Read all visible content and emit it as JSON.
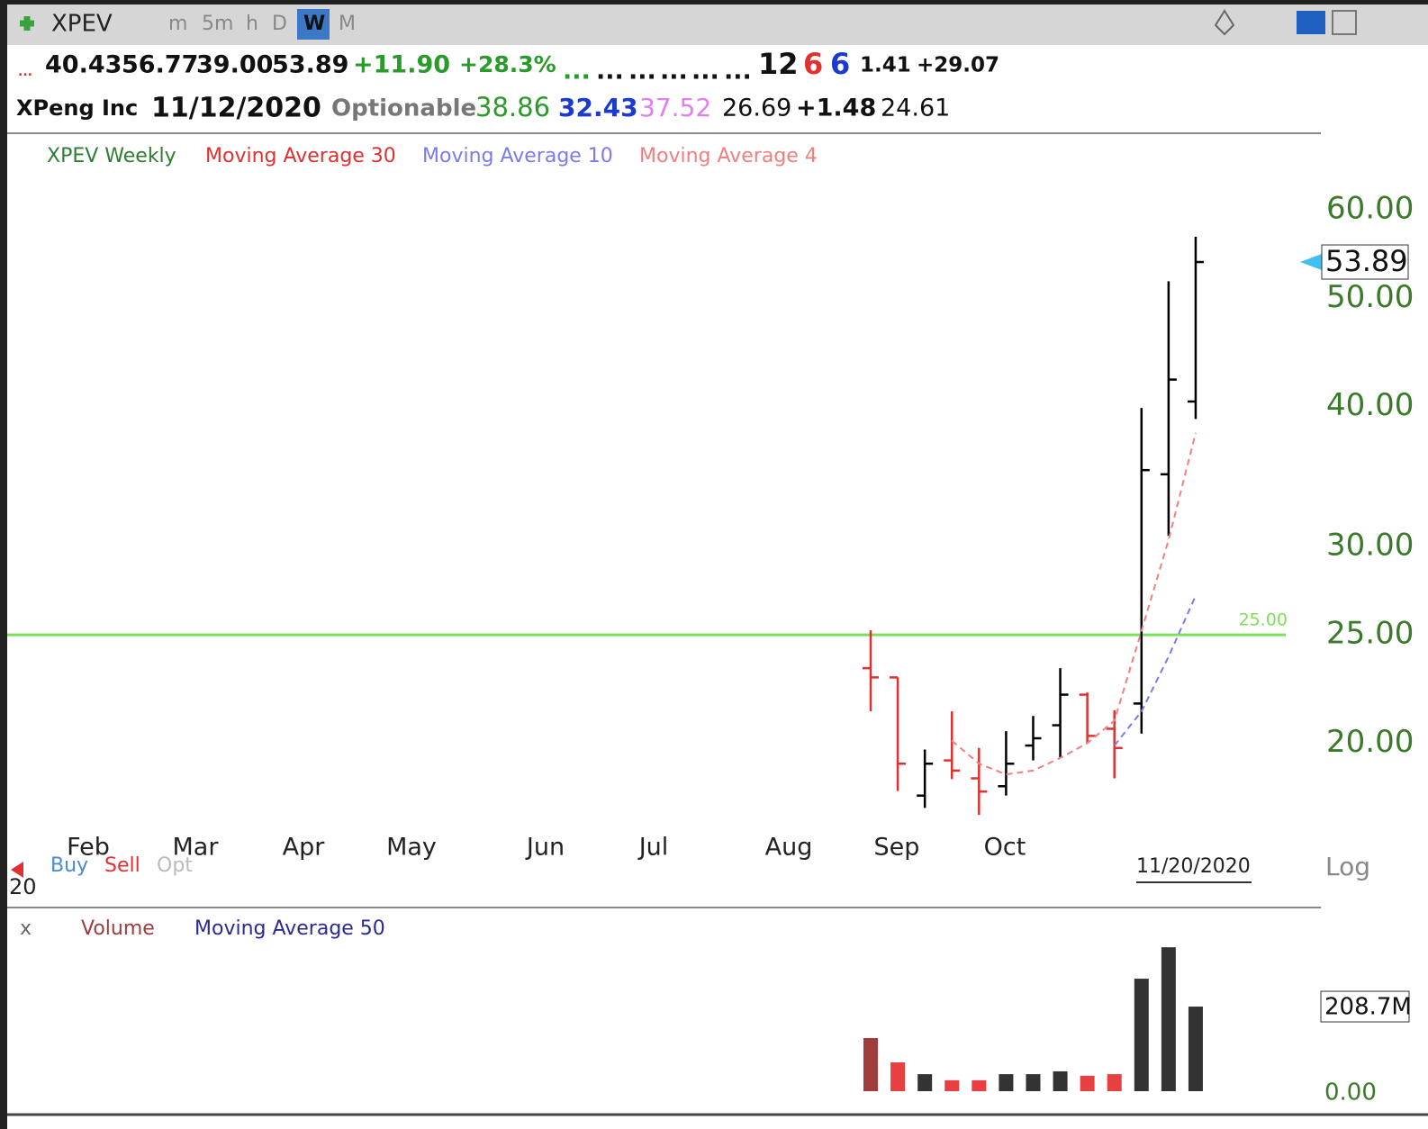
{
  "toolbar": {
    "symbol": "XPEV",
    "intervals": [
      "m",
      "5m",
      "h",
      "D",
      "W",
      "M"
    ]
  },
  "quote": {
    "line1": [
      "...",
      "40.43",
      "56.77",
      "39.00",
      "53.89",
      "+11.90",
      "+28.3%",
      "...",
      "...",
      "...",
      "...",
      "...",
      "...",
      "12",
      "6",
      "6",
      "1.41",
      "+29.07"
    ],
    "line2": [
      "XPeng Inc",
      "11/12/2020",
      "Optionable",
      "38.86",
      "32.43",
      "37.52",
      "26.69",
      "+1.48",
      "24.61"
    ]
  },
  "chart_data": [
    {
      "type": "ohlc",
      "legend": [
        "XPEV Weekly",
        "Moving Average 30"
      ],
      "open": [
        23.34,
        22.9,
        17.95,
        19.3,
        18.6,
        18.3,
        19.9,
        20.75,
        22.1,
        20.6,
        21.7,
        34.8,
        40.43
      ],
      "high": [
        25.23,
        22.9,
        19.74,
        21.35,
        19.8,
        20.5,
        21.15,
        23.34,
        22.2,
        21.4,
        39.9,
        51.8,
        56.77
      ],
      "low": [
        21.35,
        18.12,
        17.5,
        18.57,
        17.25,
        17.95,
        19.3,
        19.4,
        20.0,
        18.6,
        20.4,
        30.66,
        39.0
      ],
      "close": [
        22.9,
        19.17,
        19.17,
        18.9,
        18.1,
        19.17,
        20.2,
        22.1,
        20.3,
        19.8,
        35.1,
        42.3,
        53.89
      ],
      "color_up": "#000000",
      "color_down": "#e03030",
      "series": [
        {
          "name": "Moving Average 10",
          "color": "#7b7bf0",
          "values": [
            null,
            null,
            null,
            null,
            null,
            null,
            null,
            null,
            null,
            19.9,
            21.35,
            23.9,
            27.1
          ]
        },
        {
          "name": "Moving Average 4",
          "color": "#f08080",
          "values": [
            null,
            null,
            null,
            20.1,
            19.17,
            18.75,
            18.9,
            19.4,
            20.0,
            20.95,
            25.2,
            30.4,
            37.9
          ]
        }
      ],
      "log": true,
      "ylim": [
        17,
        65
      ],
      "yticks": [
        {
          "value": 60,
          "label": "60.00"
        },
        {
          "value": 50,
          "label": "50.00"
        },
        {
          "value": 40,
          "label": "40.00"
        },
        {
          "value": 30,
          "label": "30.00"
        },
        {
          "value": 25,
          "label": "25.00"
        },
        {
          "value": 20,
          "label": "20.00"
        }
      ],
      "hline": {
        "value": 25,
        "label": "25.00",
        "color": "#7ee05a"
      },
      "last": {
        "value": 53.89,
        "label": "53.89"
      },
      "x_labels": [
        "Feb",
        "Mar",
        "Apr",
        "May",
        "Jun",
        "Jul",
        "Aug",
        "Sep",
        "Oct"
      ],
      "year_label": "20",
      "date_label": "11/20/2020",
      "scale_label": "Log",
      "trade_buttons": [
        "Buy",
        "Sell",
        "Opt"
      ]
    },
    {
      "type": "bar",
      "legend": [
        "x",
        "Volume",
        "Moving Average 50"
      ],
      "values": [
        131,
        71,
        42,
        27,
        27,
        42,
        42,
        49,
        38,
        42,
        277.5,
        355,
        208.7
      ],
      "colors": [
        "#a03c3c",
        "#e84040",
        "#333333",
        "#e84040",
        "#e84040",
        "#333333",
        "#333333",
        "#333333",
        "#e84040",
        "#e84040",
        "#333333",
        "#333333",
        "#333333"
      ],
      "ylim": [
        0,
        382
      ],
      "yticks": [
        {
          "value": 0,
          "label": "0.00"
        },
        {
          "value": 208.7,
          "label": "208.7M"
        }
      ]
    }
  ]
}
